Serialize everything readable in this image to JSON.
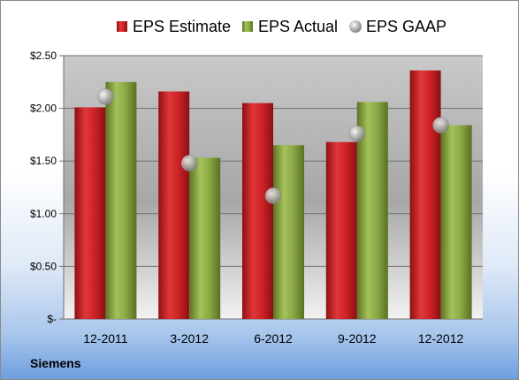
{
  "company": "Siemens",
  "chart_data": {
    "type": "bar",
    "title": "",
    "xlabel": "",
    "ylabel": "",
    "categories": [
      "12-2011",
      "3-2012",
      "6-2012",
      "9-2012",
      "12-2012"
    ],
    "ylim": [
      0,
      2.5
    ],
    "yticks": [
      0,
      0.5,
      1.0,
      1.5,
      2.0,
      2.5
    ],
    "ytick_labels": [
      "$-",
      "$0.50",
      "$1.00",
      "$1.50",
      "$2.00",
      "$2.50"
    ],
    "legend_position": "top",
    "grid": true,
    "series": [
      {
        "name": "EPS Estimate",
        "type": "bar",
        "color": "#c0181c",
        "values": [
          2.01,
          2.16,
          2.05,
          1.68,
          2.36
        ]
      },
      {
        "name": "EPS Actual",
        "type": "bar",
        "color": "#7f9a36",
        "values": [
          2.25,
          1.53,
          1.65,
          2.06,
          1.84
        ]
      },
      {
        "name": "EPS GAAP",
        "type": "scatter",
        "color": "#b4b4b4",
        "values": [
          2.11,
          1.48,
          1.17,
          1.76,
          1.84
        ]
      }
    ]
  }
}
